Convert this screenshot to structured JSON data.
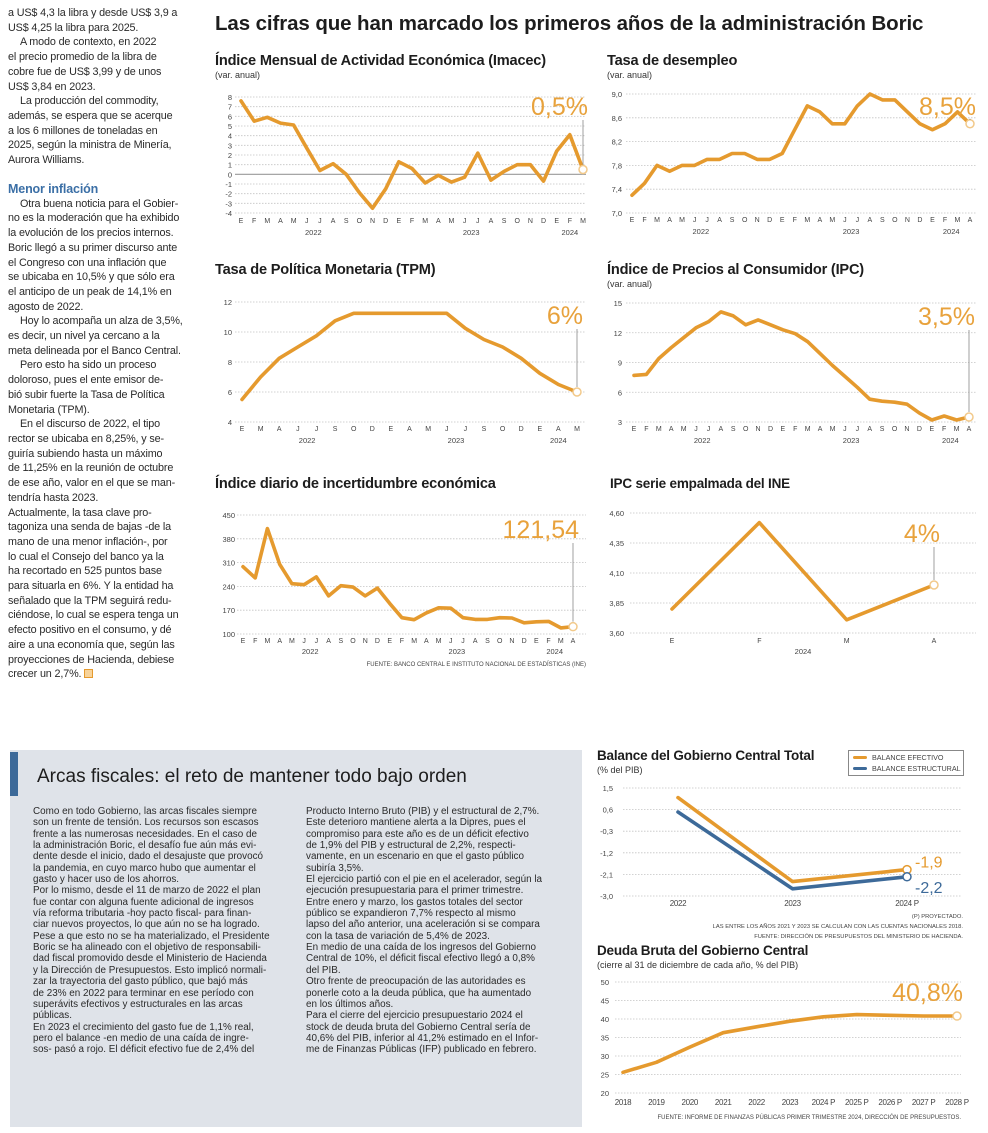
{
  "colors": {
    "line": "#e59a2e",
    "highlight": "#e8a23c",
    "structural": "#3d6a99",
    "heading_blue": "#3b6fa6",
    "panel": "#dfe3e9"
  },
  "left_column": {
    "paragraphs": [
      "a US$ 4,3 la libra y desde US$ 3,9 a\nUS$ 4,25 la libra para 2025.",
      "A modo de contexto, en 2022\nel precio promedio de la libra de\ncobre fue de US$ 3,99 y de unos\nUS$ 3,84 en 2023.",
      "La producción del commodity,\nademás, se espera que se acerque\na los 6 millones de toneladas en\n2025, según la ministra de Minería,\nAurora Williams."
    ],
    "heading": "Menor inflación",
    "paragraphs2": [
      "Otra buena noticia para el Gobier-\nno es la moderación que ha exhibido\nla evolución de los precios internos.\nBoric llegó a su primer discurso ante\nel Congreso con una inflación que\nse ubicaba en 10,5% y que sólo era\nel anticipo de un peak de 14,1% en\nagosto de 2022.",
      "Hoy lo acompaña un alza de 3,5%,\nes decir, un nivel ya cercano a la\nmeta delineada por el Banco Central.",
      "Pero esto ha sido un proceso\ndoloroso, pues el ente emisor de-\nbió subir fuerte la Tasa de Política\nMonetaria (TPM).",
      "En el discurso de 2022, el tipo\nrector se ubicaba en 8,25%, y se-\nguiría subiendo hasta un máximo\nde 11,25% en la reunión de octubre\nde ese año, valor en el que se man-\ntendría hasta 2023.",
      "Actualmente, la tasa clave pro-\ntagoniza una senda de bajas -de la\nmano de una menor inflación-, por\nlo cual el Consejo del banco ya la\nha recortado en 525 puntos base\npara situarla en 6%. Y la entidad ha\nseñalado que la TPM seguirá redu-\nciéndose, lo cual se espera tenga un\nefecto positivo en el consumo, y dé\naire a una economía que, según las\nproyecciones de Hacienda, debiese\ncrecer un 2,7%."
    ],
    "end_icon": "end-of-article-square"
  },
  "headline": "Las cifras que han marcado los primeros años de la administración Boric",
  "fiscal_box": {
    "title": "Arcas fiscales: el reto de mantener todo bajo orden",
    "col1": [
      "Como en todo Gobierno, las arcas fiscales siempre\nson un frente de tensión. Los recursos son escasos\nfrente a las numerosas necesidades. En el caso de\nla administración Boric, el desafío fue aún más evi-\ndente desde el inicio, dado el desajuste que provocó\nla pandemia, en cuyo marco hubo que aumentar el\ngasto y hacer uso de los ahorros.",
      "Por lo mismo, desde el 11 de marzo de 2022 el plan\nfue contar con alguna fuente adicional de ingresos\nvía reforma tributaria -hoy pacto fiscal- para finan-\nciar nuevos proyectos, lo que aún no se ha logrado.",
      "Pese a que esto no se ha materializado, el Presidente\nBoric se ha alineado con el objetivo de responsabili-\ndad fiscal promovido desde el Ministerio de Hacienda\ny la Dirección de Presupuestos. Esto implicó normali-\nzar la trayectoria del gasto público, que bajó más\nde 23% en 2022 para terminar en ese período con\nsuperávits efectivos y estructurales en las arcas\npúblicas.",
      "En 2023 el crecimiento del gasto fue de 1,1% real,\npero el balance -en medio de una caída de ingre-\nsos-  pasó a rojo. El déficit efectivo fue de 2,4% del"
    ],
    "col2": [
      "Producto Interno Bruto (PIB) y el estructural de 2,7%.\nEste deterioro mantiene alerta a la Dipres, pues el\ncompromiso para este año es de un déficit efectivo\nde 1,9% del PIB y estructural de 2,2%, respecti-\nvamente, en un escenario en que el gasto público\nsubiría 3,5%.",
      "El ejercicio partió con el pie en el acelerador, según la\nejecución presupuestaria para el primer trimestre.\nEntre enero y marzo, los gastos totales del sector\npúblico se expandieron 7,7% respecto al mismo\nlapso del año anterior, una aceleración si se compara\ncon la tasa de variación de 5,4% de 2023.",
      "En medio de una caída de los ingresos del Gobierno\nCentral de 10%, el déficit fiscal efectivo llegó a 0,8%\ndel PIB.",
      "Otro frente de preocupación de las autoridades es\nponerle coto a la deuda pública, que ha aumentado\nen los últimos años.",
      "Para el cierre del ejercicio presupuestario 2024 el\nstock de deuda bruta del Gobierno Central sería de\n40,6% del PIB, inferior al 41,2% estimado en el Infor-\nme de Finanzas Públicas (IFP) publicado en febrero."
    ]
  },
  "chart_data": [
    {
      "type": "line",
      "title": "Índice Mensual de Actividad Económica (Imacec)",
      "subtitle": "(var. anual)",
      "x_labels": [
        "E",
        "F",
        "M",
        "A",
        "M",
        "J",
        "J",
        "A",
        "S",
        "O",
        "N",
        "D",
        "E",
        "F",
        "M",
        "A",
        "M",
        "J",
        "J",
        "A",
        "S",
        "O",
        "N",
        "D",
        "E",
        "F",
        "M"
      ],
      "years": [
        [
          "2022",
          12
        ],
        [
          "2023",
          12
        ],
        [
          "2024",
          3
        ]
      ],
      "y_ticks": [
        "8",
        "7",
        "6",
        "5",
        "4",
        "3",
        "2",
        "1",
        "0",
        "-1",
        "-2",
        "-3",
        "-4"
      ],
      "ylim": [
        -4,
        8
      ],
      "grid": true,
      "series": [
        {
          "values": [
            7.6,
            5.5,
            5.9,
            5.3,
            5.1,
            2.7,
            0.4,
            1.1,
            0.0,
            -1.9,
            -3.5,
            -1.5,
            1.3,
            0.6,
            -0.9,
            -0.1,
            -0.8,
            -0.3,
            2.2,
            -0.6,
            0.3,
            1.0,
            1.0,
            -0.7,
            2.4,
            4.1,
            0.5
          ]
        }
      ],
      "highlight": "0,5%"
    },
    {
      "type": "line",
      "title": "Tasa de desempleo",
      "subtitle": "(var. anual)",
      "x_labels": [
        "E",
        "F",
        "M",
        "A",
        "M",
        "J",
        "J",
        "A",
        "S",
        "O",
        "N",
        "D",
        "E",
        "F",
        "M",
        "A",
        "M",
        "J",
        "J",
        "A",
        "S",
        "O",
        "N",
        "D",
        "E",
        "F",
        "M",
        "A"
      ],
      "years": [
        [
          "2022",
          12
        ],
        [
          "2023",
          12
        ],
        [
          "2024",
          4
        ]
      ],
      "y_ticks": [
        "9,0",
        "8,6",
        "8,2",
        "7,8",
        "7,4",
        "7,0"
      ],
      "ylim": [
        7.0,
        9.0
      ],
      "grid": true,
      "series": [
        {
          "values": [
            7.3,
            7.5,
            7.8,
            7.7,
            7.8,
            7.8,
            7.9,
            7.9,
            8.0,
            8.0,
            7.9,
            7.9,
            8.0,
            8.4,
            8.8,
            8.7,
            8.5,
            8.5,
            8.8,
            9.0,
            8.9,
            8.9,
            8.7,
            8.5,
            8.4,
            8.5,
            8.7,
            8.5
          ]
        }
      ],
      "highlight": "8,5%"
    },
    {
      "type": "line",
      "title": "Tasa de Política Monetaria (TPM)",
      "subtitle": "",
      "x_labels": [
        "E",
        "M",
        "A",
        "J",
        "J",
        "S",
        "O",
        "D",
        "E",
        "A",
        "M",
        "J",
        "J",
        "S",
        "O",
        "D",
        "E",
        "A",
        "M"
      ],
      "years": [
        [
          "2022",
          8
        ],
        [
          "2023",
          8
        ],
        [
          "2024",
          3
        ]
      ],
      "y_ticks": [
        "12",
        "10",
        "8",
        "6",
        "4"
      ],
      "ylim": [
        4,
        12
      ],
      "grid": true,
      "series": [
        {
          "values": [
            5.5,
            7.0,
            8.25,
            9.0,
            9.75,
            10.75,
            11.25,
            11.25,
            11.25,
            11.25,
            11.25,
            11.25,
            10.25,
            9.5,
            9.0,
            8.25,
            7.25,
            6.5,
            6.0
          ]
        }
      ],
      "highlight": "6%"
    },
    {
      "type": "line",
      "title": "Índice de Precios al Consumidor (IPC)",
      "subtitle": "(var. anual)",
      "x_labels": [
        "E",
        "F",
        "M",
        "A",
        "M",
        "J",
        "J",
        "A",
        "S",
        "O",
        "N",
        "D",
        "E",
        "F",
        "M",
        "A",
        "M",
        "J",
        "J",
        "A",
        "S",
        "O",
        "N",
        "D",
        "E",
        "F",
        "M",
        "A"
      ],
      "years": [
        [
          "2022",
          12
        ],
        [
          "2023",
          12
        ],
        [
          "2024",
          4
        ]
      ],
      "y_ticks": [
        "15",
        "12",
        "9",
        "6",
        "3"
      ],
      "ylim": [
        3,
        15
      ],
      "grid": true,
      "series": [
        {
          "values": [
            7.7,
            7.8,
            9.4,
            10.5,
            11.5,
            12.5,
            13.1,
            14.1,
            13.7,
            12.8,
            13.3,
            12.8,
            12.3,
            11.9,
            11.1,
            9.9,
            8.7,
            7.6,
            6.5,
            5.3,
            5.1,
            5.0,
            4.8,
            3.9,
            3.2,
            3.6,
            3.2,
            3.5
          ]
        }
      ],
      "highlight": "3,5%"
    },
    {
      "type": "line",
      "title": "Índice diario de incertidumbre económica",
      "subtitle": "",
      "x_labels": [
        "E",
        "F",
        "M",
        "A",
        "M",
        "J",
        "J",
        "A",
        "S",
        "O",
        "N",
        "D",
        "E",
        "F",
        "M",
        "A",
        "M",
        "J",
        "J",
        "A",
        "S",
        "O",
        "N",
        "D",
        "E",
        "F",
        "M",
        "A"
      ],
      "years": [
        [
          "2022",
          12
        ],
        [
          "2023",
          12
        ],
        [
          "2024",
          4
        ]
      ],
      "y_ticks": [
        "450",
        "380",
        "310",
        "240",
        "170",
        "100"
      ],
      "ylim": [
        100,
        450
      ],
      "grid": true,
      "series": [
        {
          "values": [
            298,
            265,
            410,
            305,
            248,
            245,
            268,
            212,
            242,
            238,
            212,
            235,
            190,
            148,
            142,
            162,
            177,
            176,
            148,
            143,
            143,
            148,
            147,
            133,
            136,
            137,
            118,
            121.54
          ]
        }
      ],
      "highlight": "121,54",
      "source": "FUENTE: BANCO CENTRAL E INSTITUTO NACIONAL DE ESTADÍSTICAS (INE)"
    },
    {
      "type": "line",
      "title": "IPC serie empalmada del INE",
      "subtitle": "",
      "x_labels": [
        "E",
        "F",
        "M",
        "A"
      ],
      "years": [
        [
          "2024",
          4
        ]
      ],
      "y_ticks": [
        "4,60",
        "4,35",
        "4,10",
        "3,85",
        "3,60"
      ],
      "ylim": [
        3.6,
        4.6
      ],
      "grid": true,
      "series": [
        {
          "values": [
            3.8,
            4.52,
            3.71,
            4.0
          ]
        }
      ],
      "highlight": "4%"
    },
    {
      "type": "line",
      "title": "Balance del Gobierno Central Total",
      "subtitle": "(% del PIB)",
      "x_labels": [
        "2022",
        "2023",
        "2024 P"
      ],
      "y_ticks": [
        "1,5",
        "0,6",
        "-0,3",
        "-1,2",
        "-2,1",
        "-3,0"
      ],
      "ylim": [
        -3.0,
        1.5
      ],
      "grid": true,
      "legend": "top-right",
      "series": [
        {
          "name": "BALANCE EFECTIVO",
          "color": "#e59a2e",
          "values": [
            1.1,
            -2.4,
            -1.9
          ],
          "end_label": "-1,9"
        },
        {
          "name": "BALANCE ESTRUCTURAL",
          "color": "#3d6a99",
          "values": [
            0.5,
            -2.7,
            -2.2
          ],
          "end_label": "-2,2"
        }
      ],
      "notes": [
        "(P) PROYECTADO.",
        "LAS ENTRE LOS AÑOS 2021 Y 2023 SE CALCULAN  CON LAS CUENTAS NACIONALES 2018.",
        "FUENTE: DIRECCIÓN DE PRESUPUESTOS DEL MINISTERIO DE HACIENDA."
      ]
    },
    {
      "type": "line",
      "title": "Deuda Bruta del Gobierno Central",
      "subtitle": "(cierre al 31 de diciembre de cada año, % del PIB)",
      "x_labels": [
        "2018",
        "2019",
        "2020",
        "2021",
        "2022",
        "2023",
        "2024 P",
        "2025 P",
        "2026 P",
        "2027 P",
        "2028 P"
      ],
      "y_ticks": [
        "50",
        "45",
        "40",
        "35",
        "30",
        "25",
        "20"
      ],
      "ylim": [
        20,
        50
      ],
      "grid": true,
      "series": [
        {
          "values": [
            25.6,
            28.3,
            32.4,
            36.3,
            37.9,
            39.4,
            40.6,
            41.2,
            41.0,
            40.8,
            40.8
          ]
        }
      ],
      "highlight": "40,8%",
      "source": "FUENTE: INFORME DE FINANZAS PÚBLICAS PRIMER TRIMESTRE 2024, DIRECCIÓN DE PRESUPUESTOS."
    }
  ]
}
